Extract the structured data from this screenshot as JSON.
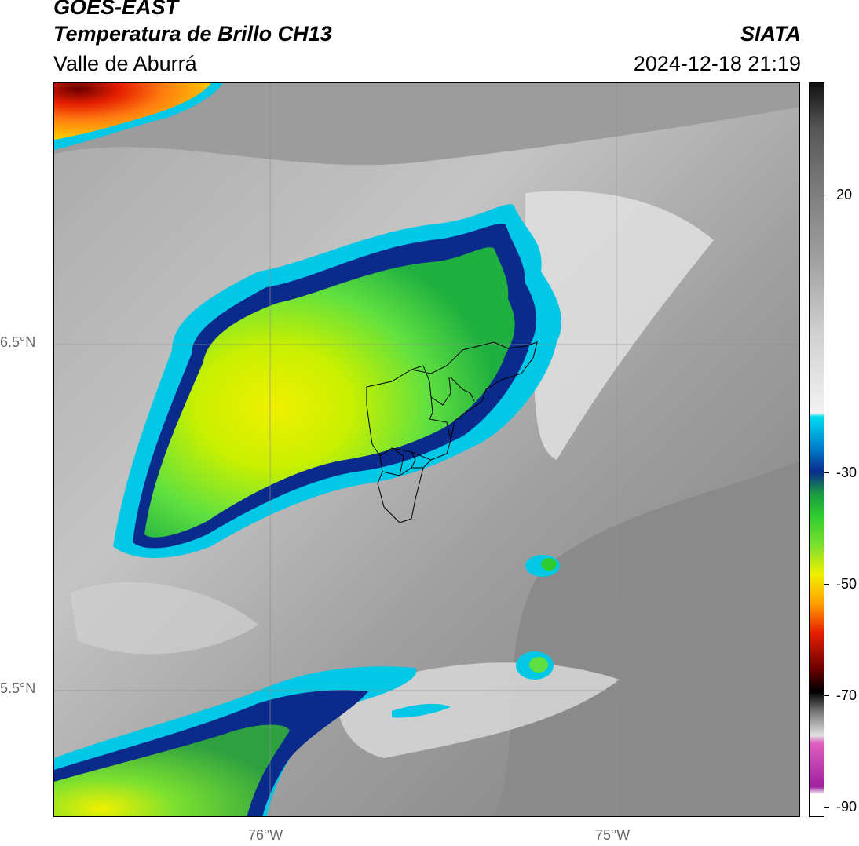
{
  "header": {
    "line1": "GOES-EAST",
    "line2": "Temperatura de Brillo CH13",
    "region": "Valle de Aburrá",
    "brand": "SIATA",
    "datetime": "2024-12-18 21:19"
  },
  "map": {
    "lat_labels": [
      "6.5°N",
      "5.5°N"
    ],
    "lon_labels": [
      "76°W",
      "75°W"
    ],
    "boundary_note": "municipal boundaries of Valle de Aburrá"
  },
  "colorbar": {
    "ticks": [
      "20",
      "-30",
      "-50",
      "-70",
      "-90"
    ],
    "range": [
      -90,
      40
    ]
  },
  "colors": {
    "grey_light": "#e6e6e6",
    "grey_dark": "#7a7a7a",
    "cyan": "#00c8e6",
    "navy": "#0a2a8c",
    "green": "#2ecc30",
    "yellow": "#f0f000",
    "red": "#e61e00",
    "magenta": "#c040b0"
  }
}
